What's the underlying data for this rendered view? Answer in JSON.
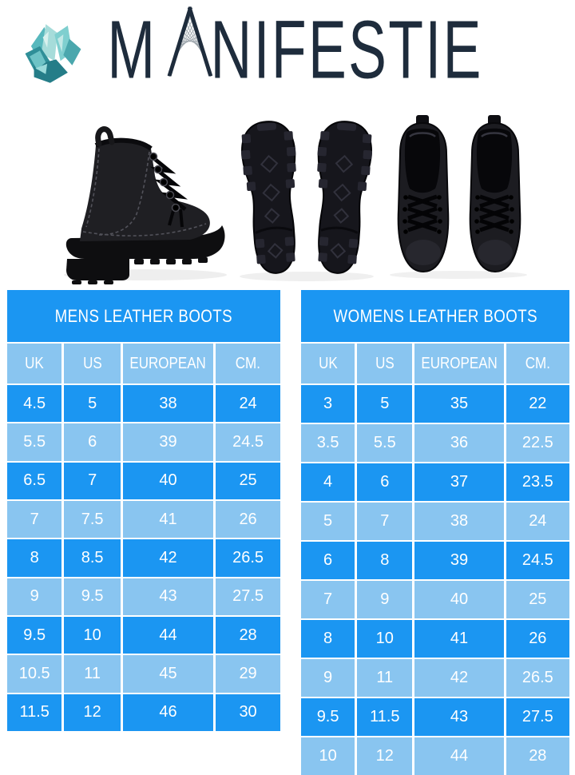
{
  "logo": {
    "brand": "MANIFESTIE",
    "part1": "M",
    "letter_a": "A",
    "part2": "NIFESTIE",
    "icon": "crystal-gem-icon"
  },
  "images": {
    "left": "black-leather-boot-side-view",
    "middle": "boot-soles-bottom-view",
    "right": "boots-pair-top-view"
  },
  "colors": {
    "primary_blue": "#1b96f2",
    "light_blue": "#89c5f0",
    "logo_navy": "#1e2c3c",
    "logo_teal": "#4aa7ad",
    "table_text": "#ffffff"
  },
  "tables": [
    {
      "title": "MENS LEATHER BOOTS",
      "columns": [
        "UK",
        "US",
        "EUROPEAN",
        "CM."
      ],
      "rows": [
        [
          "4.5",
          "5",
          "38",
          "24"
        ],
        [
          "5.5",
          "6",
          "39",
          "24.5"
        ],
        [
          "6.5",
          "7",
          "40",
          "25"
        ],
        [
          "7",
          "7.5",
          "41",
          "26"
        ],
        [
          "8",
          "8.5",
          "42",
          "26.5"
        ],
        [
          "9",
          "9.5",
          "43",
          "27.5"
        ],
        [
          "9.5",
          "10",
          "44",
          "28"
        ],
        [
          "10.5",
          "11",
          "45",
          "29"
        ],
        [
          "11.5",
          "12",
          "46",
          "30"
        ]
      ]
    },
    {
      "title": "WOMENS LEATHER BOOTS",
      "columns": [
        "UK",
        "US",
        "EUROPEAN",
        "CM."
      ],
      "rows": [
        [
          "3",
          "5",
          "35",
          "22"
        ],
        [
          "3.5",
          "5.5",
          "36",
          "22.5"
        ],
        [
          "4",
          "6",
          "37",
          "23.5"
        ],
        [
          "5",
          "7",
          "38",
          "24"
        ],
        [
          "6",
          "8",
          "39",
          "24.5"
        ],
        [
          "7",
          "9",
          "40",
          "25"
        ],
        [
          "8",
          "10",
          "41",
          "26"
        ],
        [
          "9",
          "11",
          "42",
          "26.5"
        ],
        [
          "9.5",
          "11.5",
          "43",
          "27.5"
        ],
        [
          "10",
          "12",
          "44",
          "28"
        ]
      ]
    }
  ]
}
